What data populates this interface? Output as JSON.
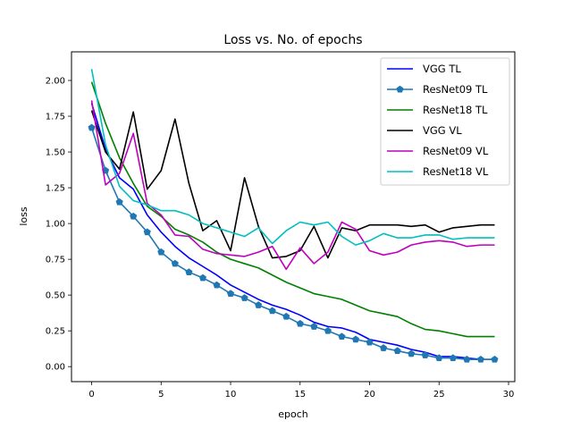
{
  "chart_data": {
    "type": "line",
    "title": "Loss vs. No. of epochs",
    "xlabel": "epoch",
    "ylabel": "loss",
    "xlim": [
      -1.45,
      30.45
    ],
    "ylim": [
      -0.105,
      2.2
    ],
    "xticks": [
      0,
      5,
      10,
      15,
      20,
      25,
      30
    ],
    "yticks": [
      0.0,
      0.25,
      0.5,
      0.75,
      1.0,
      1.25,
      1.5,
      1.75,
      2.0
    ],
    "ytick_labels": [
      "0.00",
      "0.25",
      "0.50",
      "0.75",
      "1.00",
      "1.25",
      "1.50",
      "1.75",
      "2.00"
    ],
    "legend_position": "top-right",
    "grid": false,
    "x": [
      0,
      1,
      2,
      3,
      4,
      5,
      6,
      7,
      8,
      9,
      10,
      11,
      12,
      13,
      14,
      15,
      16,
      17,
      18,
      19,
      20,
      21,
      22,
      23,
      24,
      25,
      26,
      27,
      28,
      29
    ],
    "series": [
      {
        "name": "VGG TL",
        "color": "#0000ff",
        "marker": "none",
        "values": [
          1.84,
          1.52,
          1.32,
          1.24,
          1.06,
          0.94,
          0.84,
          0.76,
          0.7,
          0.64,
          0.57,
          0.52,
          0.47,
          0.43,
          0.4,
          0.36,
          0.31,
          0.28,
          0.27,
          0.24,
          0.19,
          0.17,
          0.15,
          0.12,
          0.1,
          0.07,
          0.07,
          0.06,
          0.05,
          0.05
        ]
      },
      {
        "name": "ResNet09 TL",
        "color": "#1f77b4",
        "marker": "pentagon",
        "values": [
          1.67,
          1.37,
          1.15,
          1.05,
          0.94,
          0.8,
          0.72,
          0.66,
          0.62,
          0.57,
          0.51,
          0.48,
          0.43,
          0.39,
          0.35,
          0.3,
          0.28,
          0.25,
          0.21,
          0.19,
          0.17,
          0.13,
          0.11,
          0.09,
          0.08,
          0.06,
          0.06,
          0.05,
          0.05,
          0.05
        ]
      },
      {
        "name": "ResNet18 TL",
        "color": "#008000",
        "marker": "none",
        "values": [
          1.99,
          1.7,
          1.46,
          1.28,
          1.12,
          1.05,
          0.96,
          0.92,
          0.87,
          0.8,
          0.75,
          0.72,
          0.69,
          0.64,
          0.59,
          0.55,
          0.51,
          0.49,
          0.47,
          0.43,
          0.39,
          0.37,
          0.35,
          0.3,
          0.26,
          0.25,
          0.23,
          0.21,
          0.21,
          0.21
        ]
      },
      {
        "name": "VGG VL",
        "color": "#000000",
        "marker": "none",
        "values": [
          1.79,
          1.5,
          1.38,
          1.78,
          1.24,
          1.37,
          1.73,
          1.28,
          0.95,
          1.02,
          0.81,
          1.32,
          0.98,
          0.76,
          0.77,
          0.81,
          0.98,
          0.76,
          0.97,
          0.95,
          0.99,
          0.99,
          0.99,
          0.98,
          0.99,
          0.94,
          0.97,
          0.98,
          0.99,
          0.99
        ]
      },
      {
        "name": "ResNet09 VL",
        "color": "#bf00bf",
        "marker": "none",
        "values": [
          1.86,
          1.27,
          1.35,
          1.63,
          1.14,
          1.06,
          0.92,
          0.91,
          0.82,
          0.79,
          0.78,
          0.77,
          0.8,
          0.84,
          0.68,
          0.83,
          0.72,
          0.8,
          1.01,
          0.96,
          0.81,
          0.78,
          0.8,
          0.85,
          0.87,
          0.88,
          0.87,
          0.84,
          0.85,
          0.85
        ]
      },
      {
        "name": "ResNet18 VL",
        "color": "#00bfbf",
        "marker": "none",
        "values": [
          2.08,
          1.55,
          1.26,
          1.16,
          1.13,
          1.09,
          1.09,
          1.06,
          1.0,
          0.97,
          0.94,
          0.91,
          0.97,
          0.86,
          0.95,
          1.01,
          0.99,
          1.01,
          0.91,
          0.85,
          0.88,
          0.93,
          0.9,
          0.9,
          0.92,
          0.92,
          0.89,
          0.9,
          0.9,
          0.9
        ]
      }
    ]
  }
}
